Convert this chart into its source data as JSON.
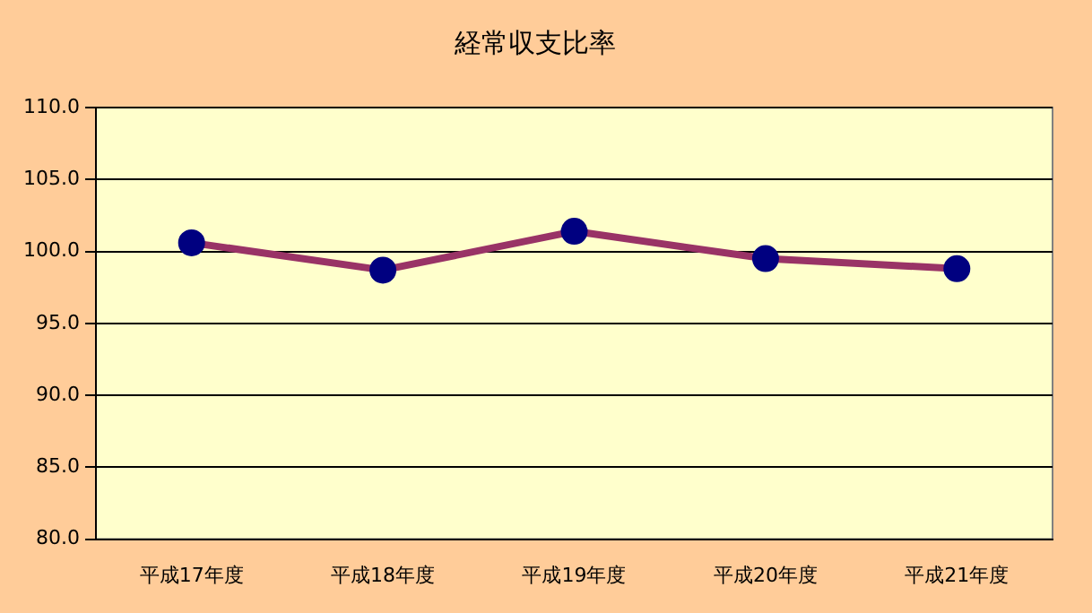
{
  "chart_data": {
    "type": "line",
    "title": "経常収支比率",
    "categories": [
      "平成17年度",
      "平成18年度",
      "平成19年度",
      "平成20年度",
      "平成21年度"
    ],
    "series": [
      {
        "color": "#993366",
        "values": [
          100.6,
          98.7,
          101.4,
          99.5,
          98.8
        ]
      }
    ],
    "ylim": [
      80,
      110
    ],
    "yticks": [
      {
        "value": 80,
        "label": "80.0"
      },
      {
        "value": 85,
        "label": "85.0"
      },
      {
        "value": 90,
        "label": "90.0"
      },
      {
        "value": 95,
        "label": "95.0"
      },
      {
        "value": 100,
        "label": "100.0"
      },
      {
        "value": 105,
        "label": "105.0"
      },
      {
        "value": 110,
        "label": "110.0"
      }
    ],
    "grid": "y",
    "legend": false,
    "marker": "circle",
    "line_style": "solid"
  }
}
